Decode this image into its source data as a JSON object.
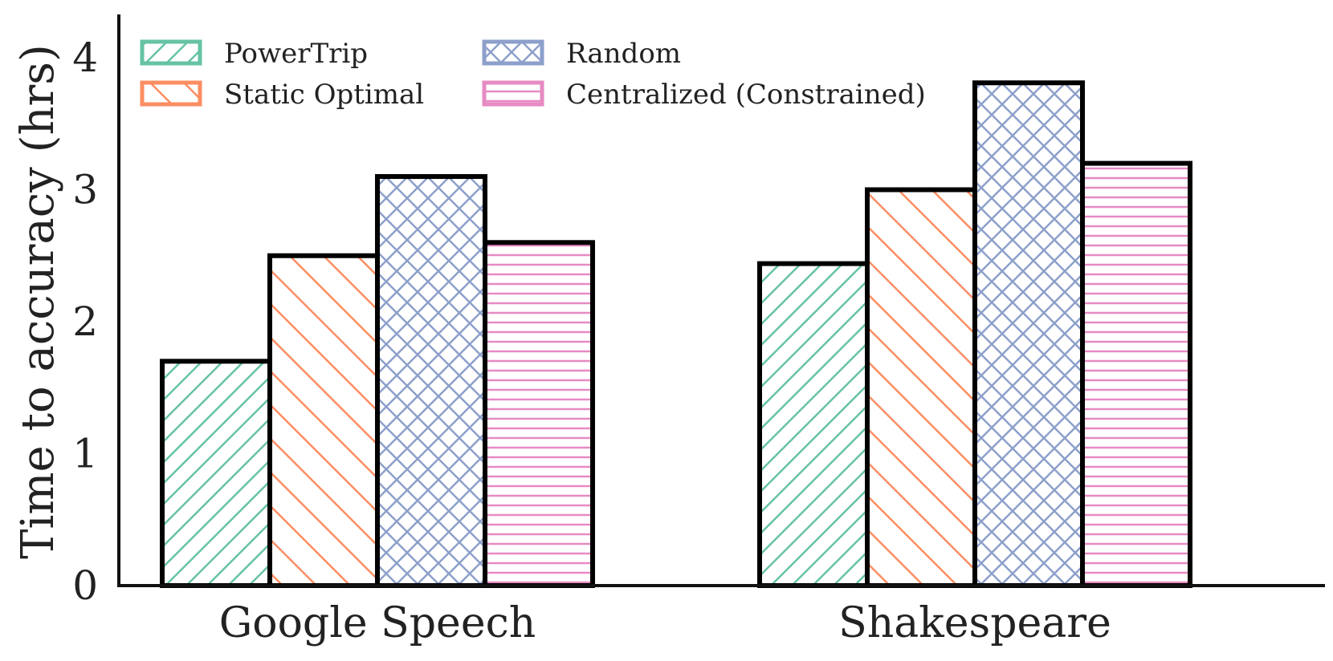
{
  "chart_data": {
    "type": "bar",
    "title": "",
    "xlabel": "",
    "ylabel": "Time to accuracy (hrs)",
    "ylim": [
      0,
      4.35
    ],
    "yticks": [
      "0",
      "1",
      "2",
      "3",
      "4"
    ],
    "grid": false,
    "legend_position": "top-left",
    "categories": [
      "Google Speech",
      "Shakespeare"
    ],
    "series": [
      {
        "name": "PowerTrip",
        "values": [
          1.7,
          2.44
        ],
        "color": "#66c2a5",
        "hatch": "diagonal-up"
      },
      {
        "name": "Static Optimal",
        "values": [
          2.5,
          3.0
        ],
        "color": "#fc8d62",
        "hatch": "diagonal-down"
      },
      {
        "name": "Random",
        "values": [
          3.1,
          3.81
        ],
        "color": "#8da0cb",
        "hatch": "crosshatch"
      },
      {
        "name": "Centralized (Constrained)",
        "values": [
          2.6,
          3.2
        ],
        "color": "#e78ac3",
        "hatch": "horizontal"
      }
    ]
  }
}
